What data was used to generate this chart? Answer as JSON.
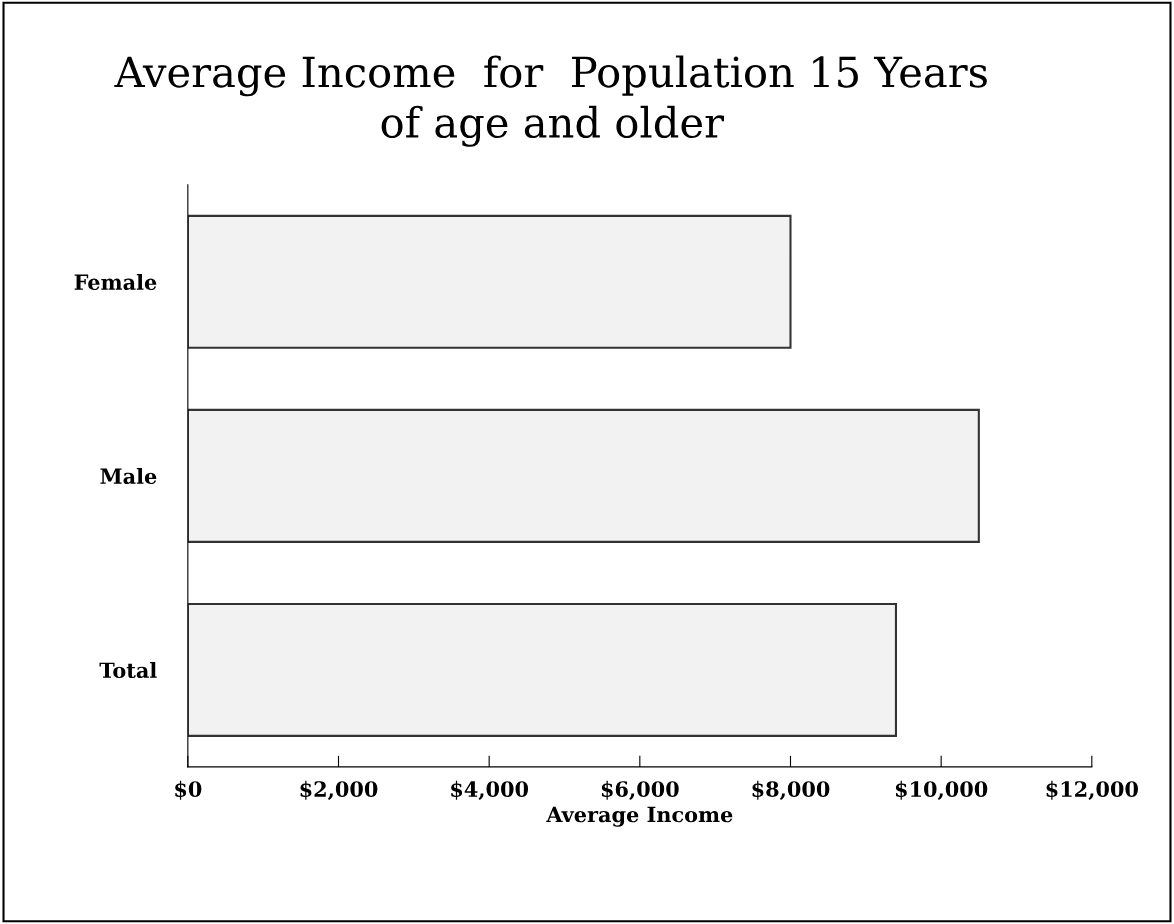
{
  "chart_data": {
    "type": "bar",
    "orientation": "horizontal",
    "title": "Average Income  for  Population 15 Years\nof age and older",
    "xlabel": "Average Income",
    "categories": [
      "Female",
      "Male",
      "Total"
    ],
    "values": [
      8000,
      10500,
      9400
    ],
    "color": "#f2f2f2",
    "xlim": [
      0,
      12000
    ],
    "xticks": [
      {
        "value": 0,
        "label": "$0"
      },
      {
        "value": 2000,
        "label": "$2,000"
      },
      {
        "value": 4000,
        "label": "$4,000"
      },
      {
        "value": 6000,
        "label": "$6,000"
      },
      {
        "value": 8000,
        "label": "$8,000"
      },
      {
        "value": 10000,
        "label": "$10,000"
      },
      {
        "value": 12000,
        "label": "$12,000"
      }
    ],
    "grid": false
  }
}
